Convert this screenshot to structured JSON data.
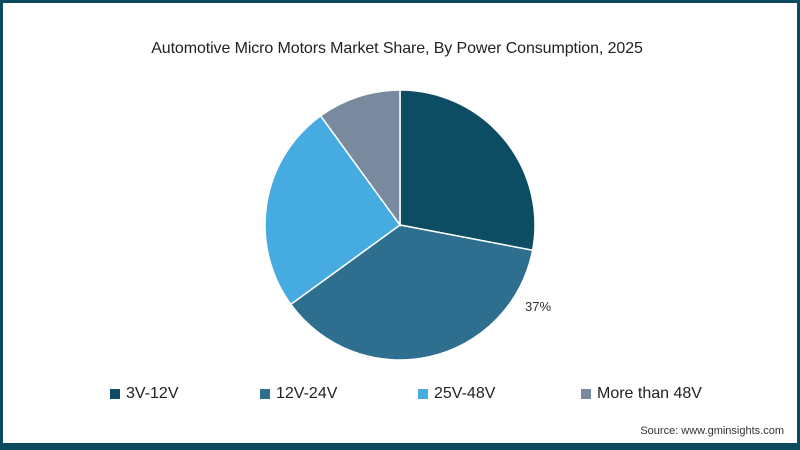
{
  "chart_data": {
    "type": "pie",
    "title": "Automotive Micro Motors Market Share, By Power Consumption, 2025",
    "categories": [
      "3V-12V",
      "12V-24V",
      "25V-48V",
      "More than 48V"
    ],
    "values": [
      28,
      37,
      25,
      10
    ],
    "unit": "%",
    "colors": [
      "#0d4d63",
      "#2e6e8e",
      "#46abe0",
      "#7a8a9e"
    ],
    "data_labels": [
      {
        "category": "12V-24V",
        "text": "37%"
      }
    ],
    "start_angle": "12 o'clock, clockwise",
    "legend_position": "bottom"
  },
  "title": "Automotive Micro Motors Market Share, By Power Consumption, 2025",
  "legend": [
    {
      "label": "3V-12V",
      "color": "#0d4d63"
    },
    {
      "label": "12V-24V",
      "color": "#2e6e8e"
    },
    {
      "label": "25V-48V",
      "color": "#46abe0"
    },
    {
      "label": "More than 48V",
      "color": "#7a8a9e"
    }
  ],
  "slice_label": "37%",
  "source": "Source: www.gminsights.com"
}
